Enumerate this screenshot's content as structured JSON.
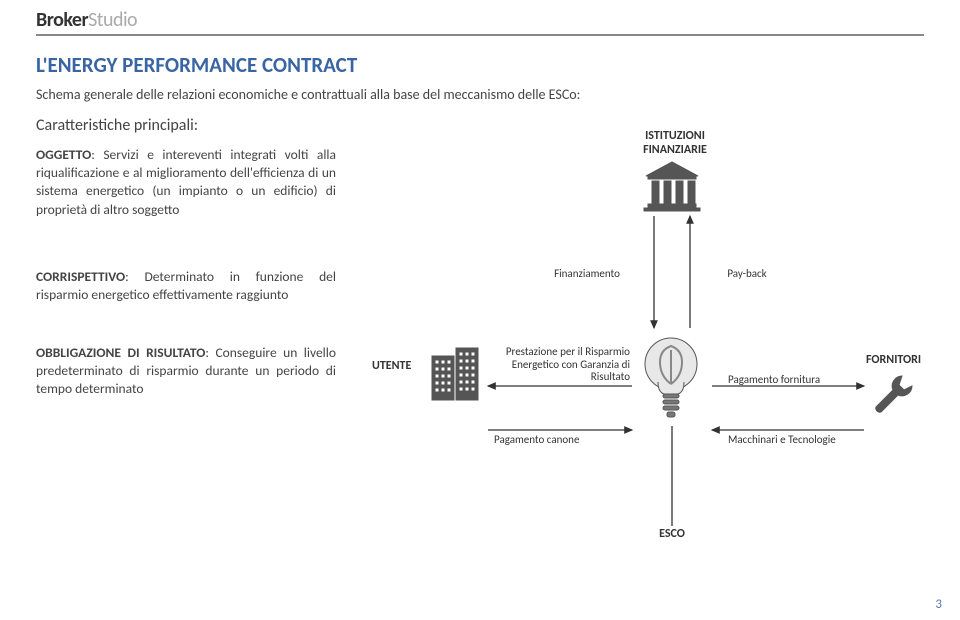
{
  "logo": {
    "part1": "Broker",
    "part2": "Studio"
  },
  "title": "L'ENERGY PERFORMANCE CONTRACT",
  "subtitle": "Schema generale delle relazioni economiche e contrattuali alla base del meccanismo delle ESCo:",
  "char_heading": "Caratteristiche principali:",
  "p1_lead": "OGGETTO",
  "p1_body": ": Servizi e intereventi integrati volti alla riqualificazione e al miglioramento dell'efficienza di un sistema energetico (un impianto o un edificio) di proprietà di altro soggetto",
  "p2_lead": "CORRISPETTIVO",
  "p2_body": ": Determinato in funzione del risparmio energetico effettivamente raggiunto",
  "p3_lead": "OBBLIGAZIONE DI RISULTATO",
  "p3_body": ": Conseguire un livello predeterminato di risparmio durante un periodo di tempo determinato",
  "diagram": {
    "nodes": {
      "istituzioni": {
        "label": "ISTITUZIONI\nFINANZIARIE"
      },
      "utente": {
        "label": "UTENTE"
      },
      "fornitori": {
        "label": "FORNITORI"
      },
      "esco": {
        "label": "ESCO"
      }
    },
    "edges": {
      "finanziamento": "Finanziamento",
      "payback": "Pay-back",
      "prestazione": "Prestazione per il Risparmio\nEnergetico con Garanzia di\nRisultato",
      "pagamento_canone": "Pagamento canone",
      "pagamento_fornitura": "Pagamento fornitura",
      "macchinari": "Macchinari e Tecnologie"
    }
  },
  "page_number": "3",
  "colors": {
    "title": "#3a65a3",
    "text": "#444444",
    "icon": "#555555",
    "arrow": "#333333",
    "logo_dark": "#333333",
    "logo_light": "#aaaaaa"
  }
}
